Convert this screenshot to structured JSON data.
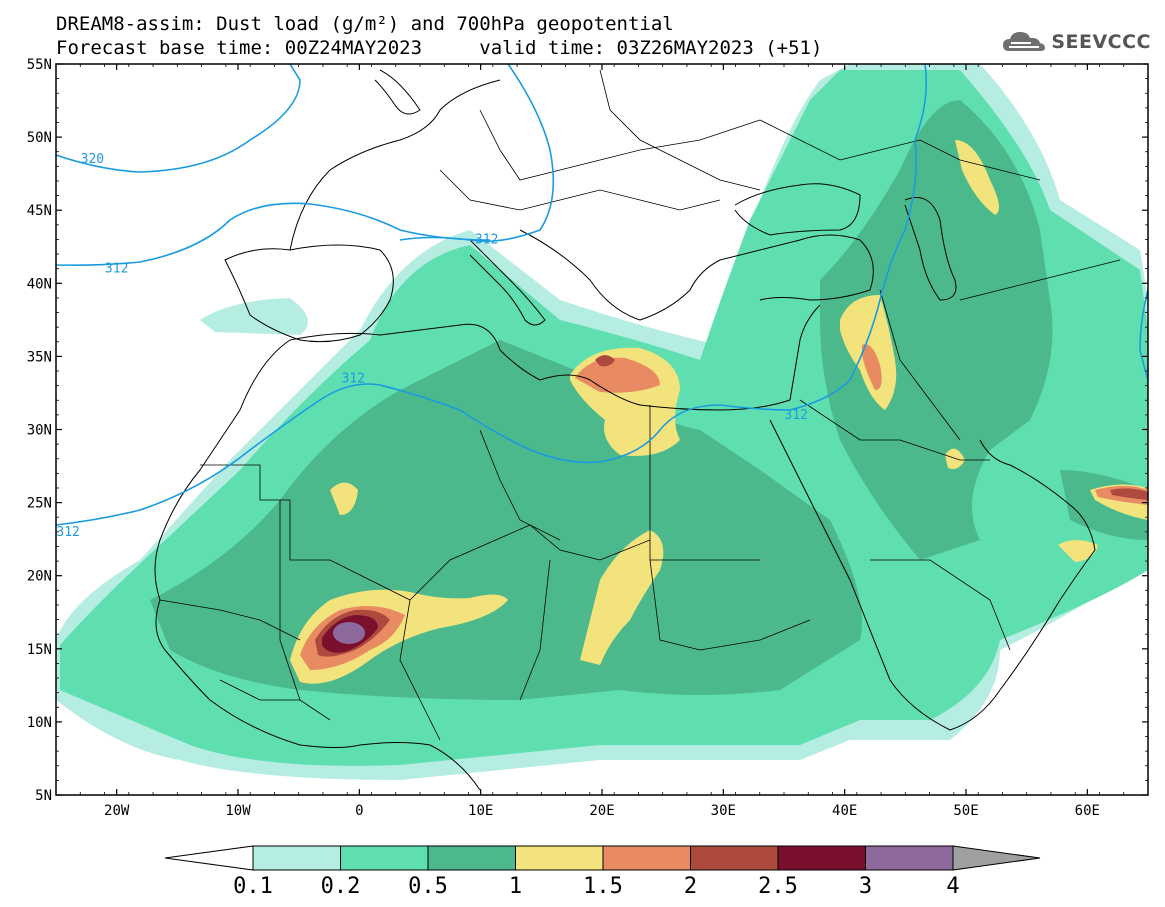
{
  "header": {
    "title_line1": "DREAM8-assim: Dust load (g/m²) and 700hPa geopotential",
    "base_label": "Forecast base time: 00Z24MAY2023",
    "valid_label": "valid time: 03Z26MAY2023 (+51)",
    "logo_text": "SEEVCCC"
  },
  "map": {
    "lat_labels": [
      "55N",
      "50N",
      "45N",
      "40N",
      "35N",
      "30N",
      "25N",
      "20N",
      "15N",
      "10N",
      "5N"
    ],
    "lon_labels": [
      "20W",
      "10W",
      "0",
      "10E",
      "20E",
      "30E",
      "40E",
      "50E",
      "60E"
    ],
    "contour_labels": [
      {
        "value": "320",
        "lon": -22,
        "lat": 48.5
      },
      {
        "value": "312",
        "lon": -20,
        "lat": 41.0
      },
      {
        "value": "312",
        "lon": 10.5,
        "lat": 43.0
      },
      {
        "value": "312",
        "lon": -0.5,
        "lat": 33.5
      },
      {
        "value": "312",
        "lon": 36,
        "lat": 31.0
      },
      {
        "value": "312",
        "lon": -24,
        "lat": 23.0
      }
    ],
    "lon_range": [
      -25,
      65
    ],
    "lat_range": [
      5,
      55
    ]
  },
  "colorbar": {
    "labels": [
      "0.1",
      "0.2",
      "0.5",
      "1",
      "1.5",
      "2",
      "2.5",
      "3",
      "4"
    ],
    "colors": {
      "under": "#ffffff",
      "bins": [
        "#b6ede3",
        "#5fdfb0",
        "#4cb98c",
        "#f3e37c",
        "#e98b62",
        "#ad4a3e",
        "#7a0f2e",
        "#8e6a9c"
      ],
      "over": "#a0a0a0"
    }
  },
  "colors": {
    "contour": "#1a9be0",
    "border": "#000000"
  }
}
